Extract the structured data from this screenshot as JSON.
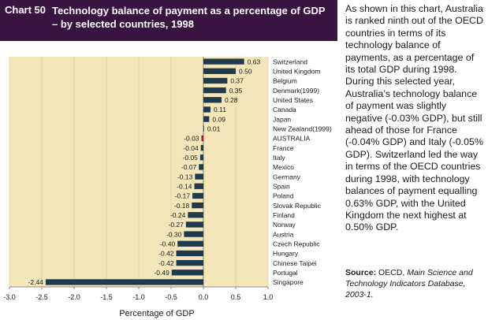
{
  "chart_number": "Chart 50",
  "chart_title": "Technology balance of payment as a percentage of GDP – by selected countries, 1998",
  "description": "As shown in this chart, Australia is ranked ninth out of the OECD countries in terms of its technology balance of payments, as a percentage of its total GDP during 1998. During this selected year, Australia’s technology balance of payment was slightly negative (-0.03% GDP), but still ahead of those for France (-0.04% GDP) and Italy (-0.05% GDP). Switzerland led the way in terms of the OECD countries during 1998, with technology balances of payment equalling 0.63% GDP, with the United Kingdom the next highest at 0.50% GDP.",
  "source": {
    "label": "Source:",
    "org": "OECD,",
    "title": "Main Science and Technology Indicators Database, 2003-1."
  },
  "colors": {
    "title_bg": "#3a1440",
    "plot_bg": "#f3e6b8",
    "bar": "#1e3a4c",
    "highlight_bar": "#b3141c"
  },
  "chart_data": {
    "type": "bar",
    "orientation": "horizontal",
    "xlabel": "Percentage of GDP",
    "xlim": [
      -3.0,
      1.0
    ],
    "xticks": [
      "-3.0",
      "-2.5",
      "-2.0",
      "-1.5",
      "-1.0",
      "-0.5",
      "0.0",
      "0.5",
      "1.0"
    ],
    "highlight": "AUSTRALIA",
    "categories": [
      "Switzerland",
      "United Kingdom",
      "Belgium",
      "Denmark(1999)",
      "United States",
      "Canada",
      "Japan",
      "New Zealand(1999)",
      "AUSTRALIA",
      "France",
      "Italy",
      "Mexico",
      "Germany",
      "Spain",
      "Poland",
      "Slovak Republic",
      "Finland",
      "Norway",
      "Austria",
      "Czech Republic",
      "Hungary",
      "Chinese Taipei",
      "Portugal",
      "Singapore"
    ],
    "values": [
      0.63,
      0.5,
      0.37,
      0.35,
      0.28,
      0.11,
      0.09,
      0.01,
      -0.03,
      -0.04,
      -0.05,
      -0.07,
      -0.13,
      -0.14,
      -0.17,
      -0.18,
      -0.24,
      -0.27,
      -0.3,
      -0.4,
      -0.42,
      -0.42,
      -0.49,
      -2.44
    ],
    "value_labels": [
      "0.63",
      "0.50",
      "0.37",
      "0.35",
      "0.28",
      "0.11",
      "0.09",
      "0.01",
      "-0.03",
      "-0.04",
      "-0.05",
      "-0.07",
      "-0.13",
      "-0.14",
      "-0.17",
      "-0.18",
      "-0.24",
      "-0.27",
      "-0.30",
      "-0.40",
      "-0.42",
      "-0.42",
      "-0.49",
      "-2.44"
    ]
  }
}
